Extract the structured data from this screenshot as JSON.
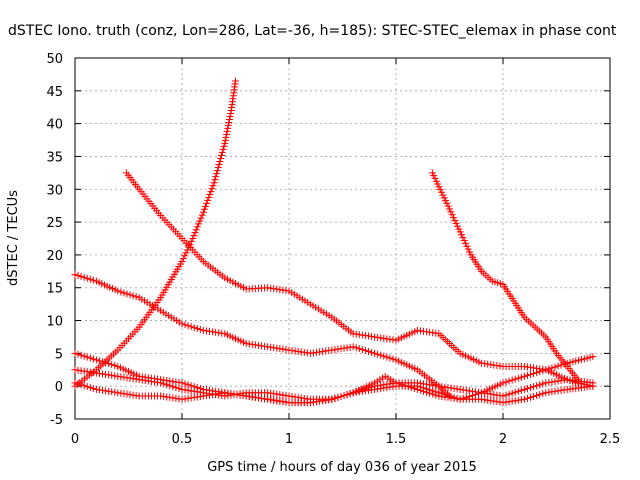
{
  "chart_data": {
    "type": "scatter",
    "title": "dSTEC Iono. truth (conz, Lon=286, Lat=-36, h=185): STEC-STEC_elemax in phase cont",
    "xlabel": "GPS time / hours of day 036 of year 2015",
    "ylabel": "dSTEC  / TECUs",
    "xlim": [
      0,
      2.5
    ],
    "ylim": [
      -5,
      50
    ],
    "xticks": [
      0,
      0.5,
      1,
      1.5,
      2,
      2.5
    ],
    "xtick_labels": [
      "0",
      "0.5",
      "1",
      "1.5",
      "2",
      "2.5"
    ],
    "yticks": [
      -5,
      0,
      5,
      10,
      15,
      20,
      25,
      30,
      35,
      40,
      45,
      50
    ],
    "ytick_labels": [
      "-5",
      "0",
      "5",
      "10",
      "15",
      "20",
      "25",
      "30",
      "35",
      "40",
      "45",
      "50"
    ],
    "grid": true,
    "marker": "plus",
    "color": "#ff0000",
    "series": [
      {
        "x": [
          0.0,
          0.1,
          0.2,
          0.3,
          0.4,
          0.5,
          0.55,
          0.6,
          0.65,
          0.7,
          0.73,
          0.75
        ],
        "y": [
          0.0,
          2.5,
          5.5,
          9.0,
          13.5,
          19.0,
          22.5,
          26.5,
          31.0,
          37.0,
          42.0,
          46.5
        ]
      },
      {
        "x": [
          0.0,
          0.1,
          0.2,
          0.3,
          0.4,
          0.5,
          0.6,
          0.7,
          0.8,
          0.9,
          1.0,
          1.1,
          1.2,
          1.3,
          1.4,
          1.5,
          1.6,
          1.7,
          1.75
        ],
        "y": [
          17.0,
          16.0,
          14.5,
          13.5,
          11.5,
          9.5,
          8.5,
          8.0,
          6.5,
          6.0,
          5.5,
          5.0,
          5.5,
          6.0,
          5.0,
          4.0,
          2.5,
          0.0,
          -1.5
        ]
      },
      {
        "x": [
          0.24,
          0.3,
          0.4,
          0.5,
          0.6,
          0.7,
          0.8,
          0.9,
          1.0,
          1.1,
          1.2,
          1.3,
          1.4,
          1.5,
          1.6,
          1.7,
          1.8,
          1.9,
          2.0,
          2.1,
          2.2,
          2.3,
          2.35,
          2.42
        ],
        "y": [
          32.5,
          30.0,
          26.0,
          22.5,
          19.0,
          16.5,
          14.8,
          15.0,
          14.5,
          12.5,
          10.5,
          8.0,
          7.5,
          7.0,
          8.5,
          8.0,
          5.0,
          3.5,
          3.0,
          3.0,
          2.5,
          1.0,
          0.5,
          0.0
        ]
      },
      {
        "x": [
          1.67,
          1.75,
          1.8,
          1.85,
          1.9,
          1.95,
          2.0,
          2.05,
          2.1,
          2.2,
          2.25,
          2.3,
          2.35
        ],
        "y": [
          32.5,
          27.0,
          23.5,
          20.0,
          17.5,
          16.0,
          15.5,
          13.0,
          10.5,
          7.5,
          5.0,
          3.0,
          1.0
        ]
      },
      {
        "x": [
          0.0,
          0.1,
          0.2,
          0.3,
          0.4,
          0.5,
          0.6,
          0.7,
          0.8,
          0.9,
          1.0,
          1.1,
          1.2,
          1.3,
          1.4,
          1.5,
          1.6,
          1.7,
          1.8,
          1.9,
          2.0,
          2.1,
          2.2,
          2.3,
          2.42
        ],
        "y": [
          5.0,
          4.0,
          3.0,
          1.5,
          1.0,
          0.5,
          -0.5,
          -1.0,
          -1.5,
          -2.0,
          -2.5,
          -2.5,
          -2.0,
          -1.0,
          0.0,
          0.5,
          0.5,
          0.0,
          -0.5,
          -1.0,
          -1.5,
          -0.5,
          0.5,
          1.0,
          0.5
        ]
      },
      {
        "x": [
          0.0,
          0.1,
          0.2,
          0.3,
          0.4,
          0.5,
          0.6,
          0.7,
          0.8,
          0.9,
          1.0,
          1.1,
          1.2,
          1.3,
          1.4,
          1.5,
          1.6,
          1.7,
          1.8,
          1.9,
          2.0,
          2.1,
          2.2,
          2.3,
          2.42
        ],
        "y": [
          2.5,
          2.0,
          1.5,
          1.0,
          0.5,
          -0.5,
          -1.0,
          -1.5,
          -1.0,
          -1.0,
          -1.5,
          -2.0,
          -2.0,
          -1.0,
          -0.5,
          0.0,
          0.0,
          -1.0,
          -2.0,
          -1.0,
          0.5,
          1.5,
          2.5,
          3.5,
          4.5
        ]
      },
      {
        "x": [
          0.0,
          0.1,
          0.2,
          0.3,
          0.4,
          0.5,
          0.6,
          0.7,
          0.8,
          0.9,
          1.0,
          1.1,
          1.2,
          1.3,
          1.4,
          1.45,
          1.5,
          1.6,
          1.7,
          1.8,
          1.9,
          2.0,
          2.1,
          2.2,
          2.3,
          2.42
        ],
        "y": [
          0.5,
          -0.5,
          -1.0,
          -1.5,
          -1.5,
          -2.0,
          -1.5,
          -1.0,
          -1.5,
          -2.0,
          -2.5,
          -2.5,
          -2.0,
          -1.0,
          0.5,
          1.5,
          0.5,
          -0.5,
          -1.5,
          -2.0,
          -2.0,
          -2.5,
          -2.0,
          -1.0,
          -0.5,
          0.0
        ]
      }
    ]
  }
}
